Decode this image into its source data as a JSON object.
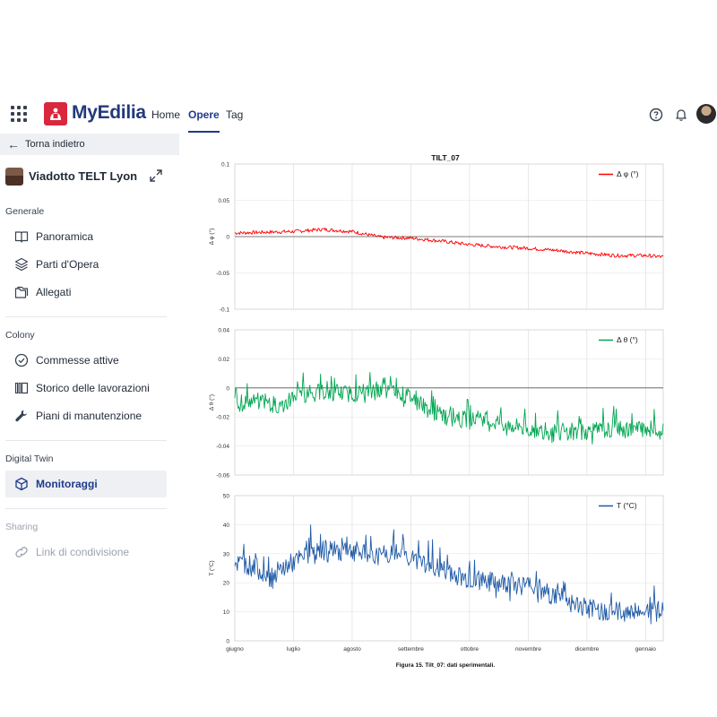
{
  "topbar": {
    "app_name": "MyEdilia",
    "nav": [
      {
        "label": "Home"
      },
      {
        "label": "Opere"
      },
      {
        "label": "Tag"
      }
    ],
    "active_nav": "Opere"
  },
  "sidebar": {
    "back_label": "Torna indietro",
    "project_name": "Viadotto TELT Lyon",
    "sections": [
      {
        "title": "Generale",
        "items": [
          {
            "label": "Panoramica",
            "icon": "book-icon"
          },
          {
            "label": "Parti d'Opera",
            "icon": "layers-icon"
          },
          {
            "label": "Allegati",
            "icon": "folder-icon"
          }
        ]
      },
      {
        "title": "Colony",
        "items": [
          {
            "label": "Commesse attive",
            "icon": "check-circle-icon"
          },
          {
            "label": "Storico delle lavorazioni",
            "icon": "history-icon"
          },
          {
            "label": "Piani di manutenzione",
            "icon": "wrench-icon"
          }
        ]
      },
      {
        "title": "Digital Twin",
        "items": [
          {
            "label": "Monitoraggi",
            "icon": "cube-icon",
            "active": true
          }
        ]
      },
      {
        "title": "Sharing",
        "items": [
          {
            "label": "Link di condivisione",
            "icon": "link-icon",
            "disabled": true
          }
        ]
      }
    ]
  },
  "figure": {
    "caption": "Figura 15. Tilt_07: dati sperimentali."
  },
  "chart_data": [
    {
      "type": "line",
      "title": "TILT_07",
      "xlabel": "",
      "ylabel": "Δ φ (°)",
      "ylim": [
        -0.1,
        0.1
      ],
      "yticks": [
        "0.1",
        "0.05",
        "0",
        "-0.05",
        "-0.1"
      ],
      "x_categories": [
        "giugno",
        "luglio",
        "agosto",
        "settembre",
        "ottobre",
        "novembre",
        "dicembre",
        "gennaio"
      ],
      "legend_position": "top-right",
      "grid": true,
      "series": [
        {
          "name": "Δ φ (°)",
          "color": "#ff0000",
          "noise": 0.0025,
          "x": [
            0,
            0.5,
            1,
            1.5,
            2,
            2.5,
            3,
            3.5,
            4,
            4.5,
            5,
            5.5,
            6,
            6.5,
            7,
            7.3
          ],
          "values": [
            0.005,
            0.006,
            0.007,
            0.01,
            0.007,
            -0.001,
            -0.002,
            -0.006,
            -0.011,
            -0.014,
            -0.016,
            -0.019,
            -0.023,
            -0.026,
            -0.026,
            -0.028
          ]
        }
      ]
    },
    {
      "type": "line",
      "ylabel": "Δ θ (°)",
      "ylim": [
        -0.06,
        0.04
      ],
      "yticks": [
        "0.04",
        "0.02",
        "0",
        "-0.02",
        "-0.04",
        "-0.06"
      ],
      "legend_position": "top-right",
      "grid": true,
      "series": [
        {
          "name": "Δ θ (°)",
          "color": "#00a651",
          "noise": 0.006,
          "x": [
            0,
            0.5,
            0.8,
            1,
            1.5,
            2,
            2.5,
            3,
            3.3,
            3.6,
            4,
            4.5,
            5,
            5.5,
            6,
            6.5,
            7,
            7.3
          ],
          "values": [
            -0.01,
            -0.009,
            -0.013,
            -0.005,
            -0.003,
            -0.004,
            -0.002,
            -0.006,
            -0.015,
            -0.02,
            -0.022,
            -0.024,
            -0.028,
            -0.031,
            -0.03,
            -0.029,
            -0.028,
            -0.03
          ]
        }
      ]
    },
    {
      "type": "line",
      "ylabel": "T (°C)",
      "ylim": [
        0,
        50
      ],
      "yticks": [
        "50",
        "40",
        "30",
        "20",
        "10",
        "0"
      ],
      "legend_position": "top-right",
      "grid": true,
      "series": [
        {
          "name": "T (°C)",
          "color": "#1f5aa6",
          "noise": 3.5,
          "x": [
            0,
            0.3,
            0.6,
            0.9,
            1.2,
            1.5,
            2,
            2.4,
            2.8,
            3.2,
            3.6,
            4,
            4.5,
            5,
            5.5,
            6,
            6.5,
            7,
            7.3
          ],
          "values": [
            27,
            26,
            22,
            26,
            29,
            31,
            31,
            29,
            30,
            27,
            24,
            21,
            20,
            19,
            15,
            11,
            10,
            10,
            11
          ]
        }
      ]
    }
  ]
}
